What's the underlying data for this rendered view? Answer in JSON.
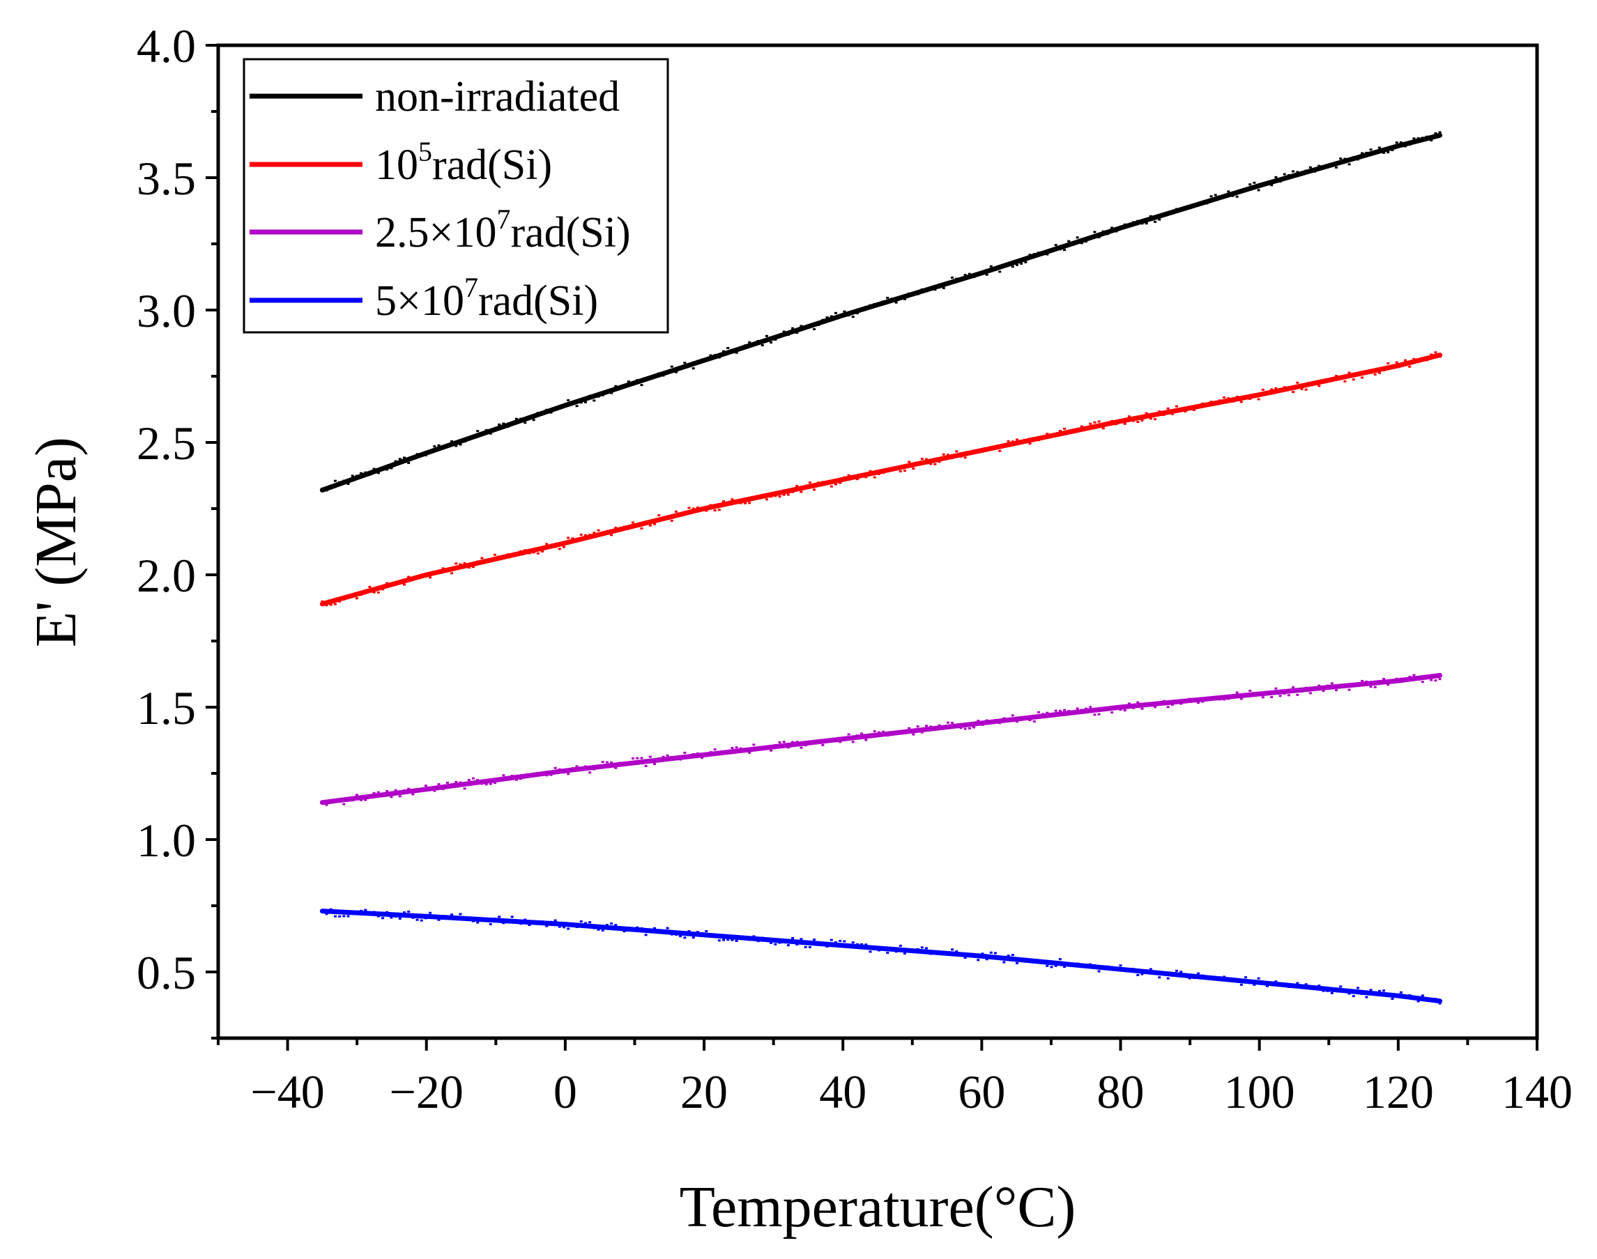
{
  "chart_data": {
    "type": "line",
    "title": "",
    "xlabel": "Temperature(°C)",
    "ylabel": "E' (MPa)",
    "xlim": [
      -50,
      140
    ],
    "ylim": [
      0.25,
      4.0
    ],
    "xticks": [
      -40,
      -20,
      0,
      20,
      40,
      60,
      80,
      100,
      120,
      140
    ],
    "xtick_labels": [
      "−40",
      "−20",
      "0",
      "20",
      "40",
      "60",
      "80",
      "100",
      "120",
      "140"
    ],
    "yticks": [
      0.5,
      1.0,
      1.5,
      2.0,
      2.5,
      3.0,
      3.5,
      4.0
    ],
    "ytick_labels": [
      "0.5",
      "1.0",
      "1.5",
      "2.0",
      "2.5",
      "3.0",
      "3.5",
      "4.0"
    ],
    "grid": false,
    "legend_position": "top-left",
    "series": [
      {
        "name": "non-irradiated",
        "legend_main": "non-irradiated",
        "legend_sup": "",
        "legend_tail": "",
        "color": "#000000",
        "x": [
          -35,
          -20,
          0,
          20,
          40,
          60,
          80,
          100,
          120,
          126
        ],
        "values": [
          2.32,
          2.46,
          2.64,
          2.81,
          2.98,
          3.14,
          3.31,
          3.47,
          3.62,
          3.66
        ]
      },
      {
        "name": "10^5rad(Si)",
        "legend_main": "10",
        "legend_sup": "5",
        "legend_tail": "rad(Si)",
        "color": "#ff0000",
        "x": [
          -35,
          -20,
          0,
          20,
          40,
          60,
          80,
          100,
          120,
          126
        ],
        "values": [
          1.89,
          2.0,
          2.12,
          2.25,
          2.36,
          2.47,
          2.58,
          2.68,
          2.79,
          2.83
        ]
      },
      {
        "name": "2.5×10^7rad(Si)",
        "legend_main": "2.5×10",
        "legend_sup": "7",
        "legend_tail": "rad(Si)",
        "color": "#b000c8",
        "x": [
          -35,
          -20,
          0,
          20,
          40,
          60,
          80,
          100,
          120,
          126
        ],
        "values": [
          1.14,
          1.19,
          1.26,
          1.32,
          1.38,
          1.44,
          1.5,
          1.55,
          1.6,
          1.62
        ]
      },
      {
        "name": "5×10^7rad(Si)",
        "legend_main": "5×10",
        "legend_sup": "7",
        "legend_tail": "rad(Si)",
        "color": "#0000ff",
        "x": [
          -35,
          -20,
          0,
          20,
          40,
          60,
          80,
          100,
          120,
          126
        ],
        "values": [
          0.73,
          0.71,
          0.68,
          0.64,
          0.6,
          0.56,
          0.51,
          0.46,
          0.41,
          0.39
        ]
      }
    ]
  }
}
